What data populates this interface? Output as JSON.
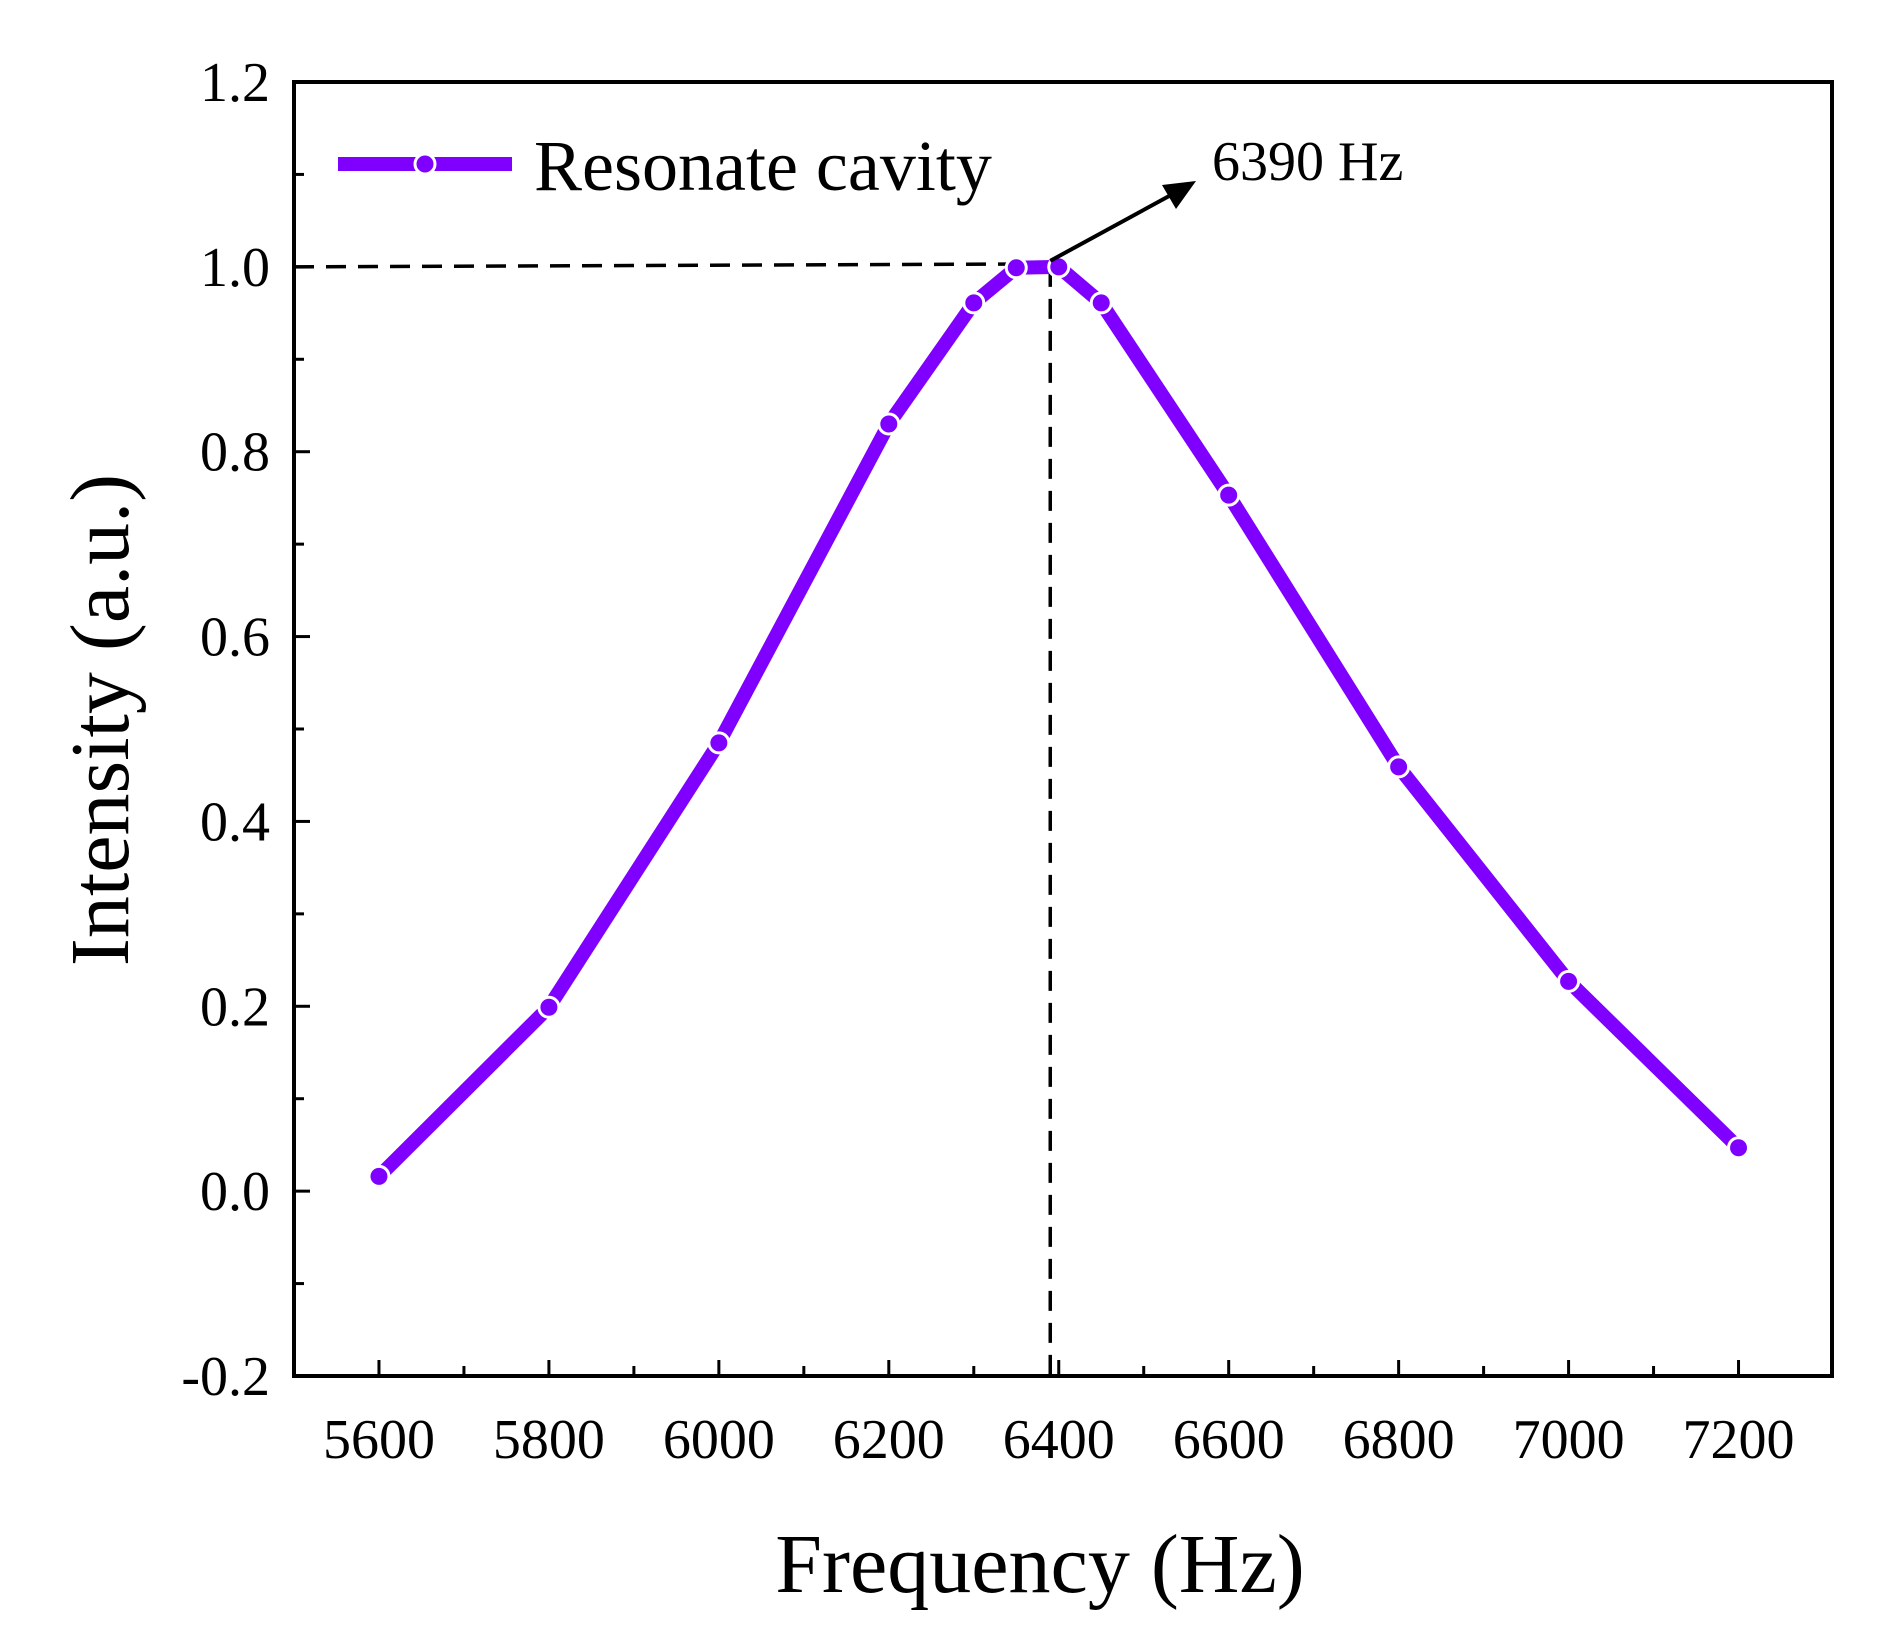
{
  "chart_data": {
    "type": "line",
    "title": "",
    "xlabel": "Frequency (Hz)",
    "ylabel": "Intensity (a.u.)",
    "xlim": [
      5500,
      7310
    ],
    "ylim": [
      -0.2,
      1.2
    ],
    "x_ticks": [
      5600,
      5800,
      6000,
      6200,
      6400,
      6600,
      6800,
      7000,
      7200
    ],
    "x_tick_labels": [
      "5600",
      "5800",
      "6000",
      "6200",
      "6400",
      "6600",
      "6800",
      "7000",
      "7200"
    ],
    "y_ticks": [
      -0.2,
      0.0,
      0.2,
      0.4,
      0.6,
      0.8,
      1.0,
      1.2
    ],
    "y_tick_labels": [
      "-0.2",
      "0.0",
      "0.2",
      "0.4",
      "0.6",
      "0.8",
      "1.0",
      "1.2"
    ],
    "grid": false,
    "legend_position": "top-left",
    "series": [
      {
        "name": "Resonate cavity",
        "color": "#7F00FF",
        "x": [
          5600,
          5800,
          6000,
          6200,
          6300,
          6350,
          6400,
          6450,
          6600,
          6800,
          7000,
          7200
        ],
        "y": [
          0.016,
          0.199,
          0.485,
          0.83,
          0.961,
          0.999,
          1.0,
          0.961,
          0.753,
          0.459,
          0.227,
          0.047
        ]
      }
    ],
    "annotations": [
      {
        "text": "6390 Hz",
        "x": 6390,
        "y": 1.0,
        "reference_lines": "dashed"
      }
    ]
  }
}
